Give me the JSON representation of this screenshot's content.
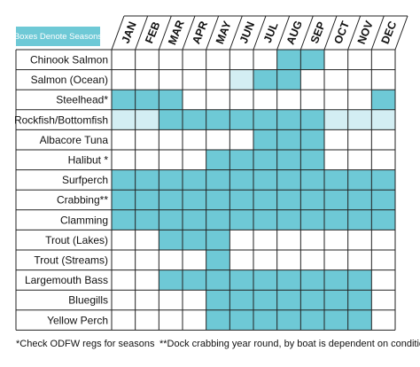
{
  "legend": "Boxes Denote Seasons",
  "months": [
    "JAN",
    "FEB",
    "MAR",
    "APR",
    "MAY",
    "JUN",
    "JUL",
    "AUG",
    "SEP",
    "OCT",
    "NOV",
    "DEC"
  ],
  "colors": {
    "full": "#6ec9d6",
    "light": "#d3eef3",
    "none": "#ffffff"
  },
  "rows": [
    {
      "label": "Chinook Salmon",
      "seasons": [
        "none",
        "none",
        "none",
        "none",
        "none",
        "none",
        "none",
        "full",
        "full",
        "none",
        "none",
        "none"
      ]
    },
    {
      "label": "Salmon (Ocean)",
      "seasons": [
        "none",
        "none",
        "none",
        "none",
        "none",
        "light",
        "full",
        "full",
        "none",
        "none",
        "none",
        "none"
      ]
    },
    {
      "label": "Steelhead*",
      "seasons": [
        "full",
        "full",
        "full",
        "none",
        "none",
        "none",
        "none",
        "none",
        "none",
        "none",
        "none",
        "full"
      ]
    },
    {
      "label": "Rockfish/Bottomfish",
      "seasons": [
        "light",
        "light",
        "full",
        "full",
        "full",
        "full",
        "full",
        "full",
        "full",
        "light",
        "light",
        "light"
      ]
    },
    {
      "label": "Albacore Tuna",
      "seasons": [
        "none",
        "none",
        "none",
        "none",
        "none",
        "none",
        "full",
        "full",
        "full",
        "none",
        "none",
        "none"
      ]
    },
    {
      "label": "Halibut *",
      "seasons": [
        "none",
        "none",
        "none",
        "none",
        "full",
        "full",
        "full",
        "full",
        "full",
        "none",
        "none",
        "none"
      ]
    },
    {
      "label": "Surfperch",
      "seasons": [
        "full",
        "full",
        "full",
        "full",
        "full",
        "full",
        "full",
        "full",
        "full",
        "full",
        "full",
        "full"
      ]
    },
    {
      "label": "Crabbing**",
      "seasons": [
        "full",
        "full",
        "full",
        "full",
        "full",
        "full",
        "full",
        "full",
        "full",
        "full",
        "full",
        "full"
      ]
    },
    {
      "label": "Clamming",
      "seasons": [
        "full",
        "full",
        "full",
        "full",
        "full",
        "full",
        "full",
        "full",
        "full",
        "full",
        "full",
        "full"
      ]
    },
    {
      "label": "Trout (Lakes)",
      "seasons": [
        "none",
        "none",
        "full",
        "full",
        "full",
        "none",
        "none",
        "none",
        "none",
        "none",
        "none",
        "none"
      ]
    },
    {
      "label": "Trout (Streams)",
      "seasons": [
        "none",
        "none",
        "none",
        "none",
        "full",
        "none",
        "none",
        "none",
        "none",
        "none",
        "none",
        "none"
      ]
    },
    {
      "label": "Largemouth Bass",
      "seasons": [
        "none",
        "none",
        "full",
        "full",
        "full",
        "full",
        "full",
        "full",
        "full",
        "full",
        "full",
        "none"
      ]
    },
    {
      "label": "Bluegills",
      "seasons": [
        "none",
        "none",
        "none",
        "none",
        "full",
        "full",
        "full",
        "full",
        "full",
        "full",
        "full",
        "none"
      ]
    },
    {
      "label": "Yellow Perch",
      "seasons": [
        "none",
        "none",
        "none",
        "none",
        "full",
        "full",
        "full",
        "full",
        "full",
        "full",
        "full",
        "none"
      ]
    }
  ],
  "footnotes": [
    "*Check ODFW regs for seasons",
    "**Dock crabbing year round, by boat is dependent on conditions"
  ]
}
